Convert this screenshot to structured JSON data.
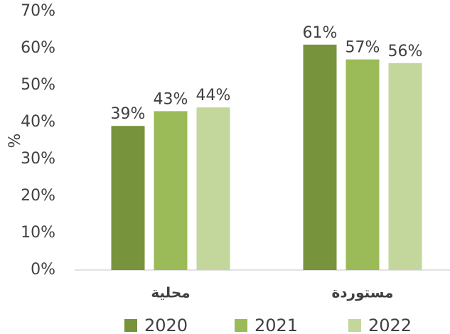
{
  "chart_data": {
    "type": "bar",
    "y_label": "%",
    "categories": [
      "محلية",
      "مستوردة"
    ],
    "series": [
      {
        "name": "2020",
        "color": "#77933c",
        "values": [
          39,
          61
        ],
        "value_labels": [
          "39%",
          "61%"
        ]
      },
      {
        "name": "2021",
        "color": "#9bbb59",
        "values": [
          43,
          57
        ],
        "value_labels": [
          "43%",
          "57%"
        ]
      },
      {
        "name": "2022",
        "color": "#c3d69b",
        "values": [
          44,
          56
        ],
        "value_labels": [
          "44%",
          "56%"
        ]
      }
    ],
    "ylim": [
      0,
      70
    ],
    "yticks": [
      {
        "value": 0,
        "label": "0%"
      },
      {
        "value": 10,
        "label": "10%"
      },
      {
        "value": 20,
        "label": "20%"
      },
      {
        "value": 30,
        "label": "30%"
      },
      {
        "value": 40,
        "label": "40%"
      },
      {
        "value": 50,
        "label": "50%"
      },
      {
        "value": 60,
        "label": "60%"
      },
      {
        "value": 70,
        "label": "70%"
      }
    ],
    "grid": false,
    "legend": "bottom"
  }
}
